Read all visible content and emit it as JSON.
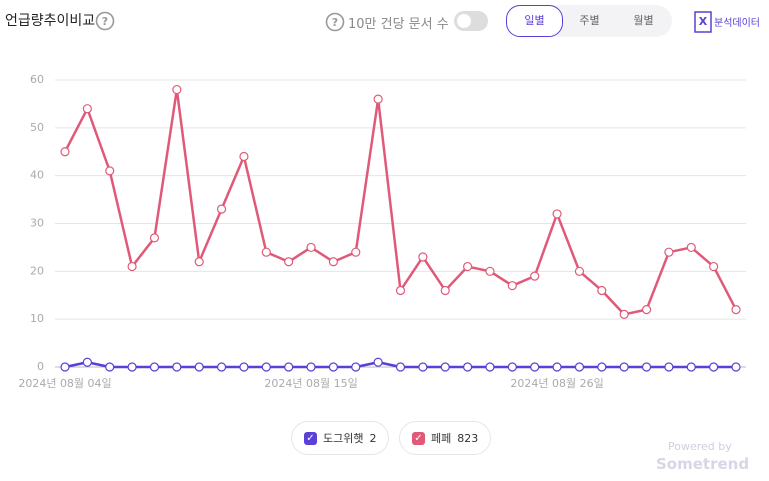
{
  "header": {
    "title": "언급량추이비교",
    "toggle_label": "10만 건당 문서 수",
    "tabs": [
      "일별",
      "주별",
      "월별"
    ],
    "export_label": "분석데이터"
  },
  "footer": {
    "powered": "Powered by",
    "brand": "Sometrend"
  },
  "chart_data": {
    "type": "line",
    "categories": [
      "2024년 08월 04일",
      null,
      null,
      null,
      null,
      null,
      null,
      null,
      null,
      null,
      null,
      "2024년 08월 15일",
      null,
      null,
      null,
      null,
      null,
      null,
      null,
      null,
      null,
      null,
      "2024년 08월 26일",
      null,
      null,
      null,
      null,
      null,
      null,
      null,
      null
    ],
    "series": [
      {
        "name": "도그위햇",
        "total": 2,
        "color": "#5b3fd6",
        "values": [
          0,
          1,
          0,
          0,
          0,
          0,
          0,
          0,
          0,
          0,
          0,
          0,
          0,
          0,
          1,
          0,
          0,
          0,
          0,
          0,
          0,
          0,
          0,
          0,
          0,
          0,
          0,
          0,
          0,
          0,
          0
        ]
      },
      {
        "name": "페페",
        "total": 823,
        "color": "#e05a78",
        "values": [
          45,
          54,
          41,
          21,
          27,
          58,
          22,
          33,
          44,
          24,
          22,
          25,
          22,
          24,
          56,
          16,
          23,
          16,
          21,
          20,
          17,
          19,
          32,
          20,
          16,
          11,
          12,
          24,
          25,
          21,
          12
        ]
      }
    ],
    "ylim": [
      0,
      60
    ],
    "yticks": [
      0,
      10,
      20,
      30,
      40,
      50,
      60
    ],
    "grid": true,
    "legend": "bottom"
  }
}
